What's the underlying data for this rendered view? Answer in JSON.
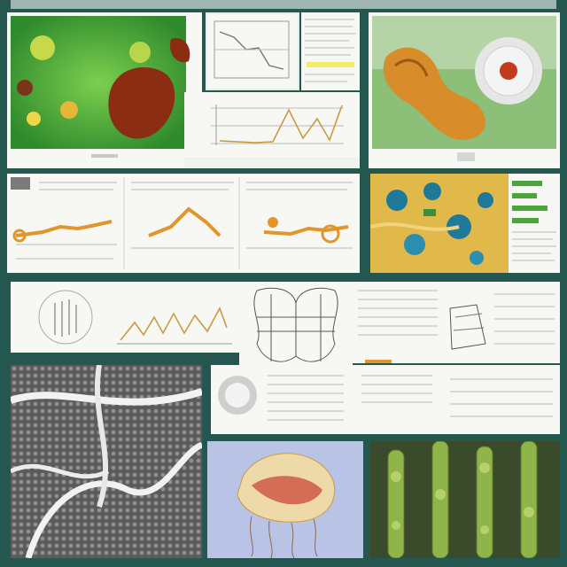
{
  "colors": {
    "background": "#235750",
    "paper": "#f7f7f3",
    "accent_orange": "#e0962b",
    "leaf_green": "#4aa63a",
    "rust": "#8a2d12",
    "moss": "#6d9a3a",
    "chart_line": "#c89b45"
  },
  "panels": [
    {
      "id": "leaf-photo",
      "kind": "photo"
    },
    {
      "id": "mini-chart-left",
      "kind": "chart"
    },
    {
      "id": "doc-sheet-top",
      "kind": "document"
    },
    {
      "id": "line-chart-monitor",
      "kind": "chart"
    },
    {
      "id": "fungus-photo",
      "kind": "photo"
    },
    {
      "id": "doc-strip-orange",
      "kind": "document"
    },
    {
      "id": "cell-photo",
      "kind": "photo"
    },
    {
      "id": "data-sheet-right",
      "kind": "document"
    },
    {
      "id": "doc-row-middle",
      "kind": "document"
    },
    {
      "id": "wireframe-sketch",
      "kind": "diagram"
    },
    {
      "id": "mesh-texture",
      "kind": "photo"
    },
    {
      "id": "doc-lower-middle",
      "kind": "document"
    },
    {
      "id": "jellyfish-drawing",
      "kind": "illustration"
    },
    {
      "id": "plant-photo",
      "kind": "photo"
    }
  ]
}
